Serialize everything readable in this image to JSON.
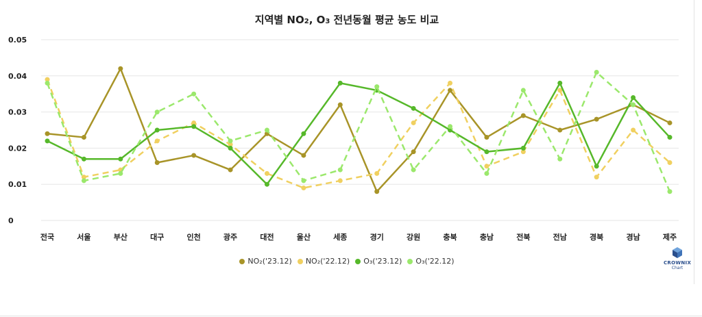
{
  "chart_data": {
    "type": "line",
    "title_parts": [
      "지역별 NO",
      "2",
      ", O",
      "3",
      " 전년동월 평균 농도 비교"
    ],
    "categories": [
      "전국",
      "서울",
      "부산",
      "대구",
      "인천",
      "광주",
      "대전",
      "울산",
      "세종",
      "경기",
      "강원",
      "충북",
      "충남",
      "전북",
      "전남",
      "경북",
      "경남",
      "제주"
    ],
    "ylim": [
      0,
      0.05
    ],
    "yticks": [
      "0",
      "0.01",
      "0.02",
      "0.03",
      "0.04",
      "0.05"
    ],
    "grid": true,
    "legend_position": "bottom",
    "series": [
      {
        "name": "NO₂('23.12)",
        "color": "#a89428",
        "dashed": false,
        "values": [
          0.024,
          0.023,
          0.042,
          0.016,
          0.018,
          0.014,
          0.024,
          0.018,
          0.032,
          0.008,
          0.019,
          0.036,
          0.023,
          0.029,
          0.025,
          0.028,
          0.032,
          0.027
        ]
      },
      {
        "name": "NO₂('22.12)",
        "color": "#f0d060",
        "dashed": true,
        "values": [
          0.039,
          0.012,
          0.014,
          0.022,
          0.027,
          0.021,
          0.013,
          0.009,
          0.011,
          0.013,
          0.027,
          0.038,
          0.015,
          0.019,
          0.036,
          0.012,
          0.025,
          0.016
        ]
      },
      {
        "name": "O₃('23.12)",
        "color": "#56b82a",
        "dashed": false,
        "values": [
          0.022,
          0.017,
          0.017,
          0.025,
          0.026,
          0.02,
          0.01,
          0.024,
          0.038,
          0.036,
          0.031,
          0.025,
          0.019,
          0.02,
          0.038,
          0.015,
          0.034,
          0.023
        ]
      },
      {
        "name": "O₃('22.12)",
        "color": "#9be86c",
        "dashed": true,
        "values": [
          0.038,
          0.011,
          0.013,
          0.03,
          0.035,
          0.022,
          0.025,
          0.011,
          0.014,
          0.037,
          0.014,
          0.026,
          0.013,
          0.036,
          0.017,
          0.041,
          0.032,
          0.008
        ]
      }
    ]
  },
  "logo": {
    "name": "CROWNIX",
    "sub": "Chart",
    "color": "#2a4e8c"
  }
}
